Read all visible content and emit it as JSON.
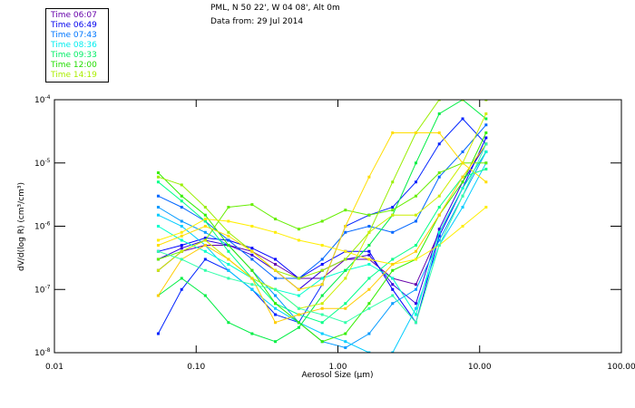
{
  "header": {
    "location": "PML, N 50 22', W 04 08', Alt 0m",
    "date": "Data from: 29 Jul 2014"
  },
  "legend": [
    {
      "label": "Time 06:07",
      "color": "#6600aa"
    },
    {
      "label": "Time 06:49",
      "color": "#0000ee"
    },
    {
      "label": "Time 07:43",
      "color": "#0077ff"
    },
    {
      "label": "Time 08:36",
      "color": "#00eeee"
    },
    {
      "label": "Time 09:33",
      "color": "#00ee66"
    },
    {
      "label": "Time 12:00",
      "color": "#22dd00"
    },
    {
      "label": "Time 14:19",
      "color": "#aaee00"
    }
  ],
  "chart_data": {
    "type": "line",
    "xscale": "log",
    "yscale": "log",
    "xlabel": "Aerosol Size (μm)",
    "ylabel": "dV/d(log R) (cm³/cm³)",
    "xlim": [
      0.01,
      100
    ],
    "ylim": [
      1e-08,
      0.0001
    ],
    "xticks": [
      "0.01",
      "0.10",
      "1.00",
      "10.00",
      "100.00"
    ],
    "xtick_values": [
      0.01,
      0.1,
      1,
      10,
      100
    ],
    "yticks": [
      {
        "base": "10",
        "exp": "-4",
        "value": 0.0001
      },
      {
        "base": "10",
        "exp": "-5",
        "value": 1e-05
      },
      {
        "base": "10",
        "exp": "-6",
        "value": 1e-06
      },
      {
        "base": "10",
        "exp": "-7",
        "value": 1e-07
      },
      {
        "base": "10",
        "exp": "-8",
        "value": 1e-08
      }
    ],
    "x": [
      0.054,
      0.079,
      0.116,
      0.169,
      0.248,
      0.362,
      0.53,
      0.775,
      1.13,
      1.66,
      2.43,
      3.55,
      5.19,
      7.59,
      11.1
    ],
    "series": [
      {
        "color": "#6600aa",
        "values": [
          2e-07,
          4e-07,
          5e-07,
          5e-07,
          4e-07,
          2.5e-07,
          1.5e-07,
          1.5e-07,
          3e-07,
          3e-07,
          1.5e-07,
          1.2e-07,
          8e-07,
          4e-06,
          1.5e-05
        ]
      },
      {
        "color": "#3300dd",
        "values": [
          3e-07,
          4.5e-07,
          6e-07,
          5e-07,
          3.5e-07,
          2e-07,
          1e-07,
          2e-07,
          3e-07,
          3.5e-07,
          1.2e-07,
          6e-08,
          9e-07,
          5e-06,
          2e-05
        ]
      },
      {
        "color": "#0000ff",
        "values": [
          4e-07,
          5e-07,
          6.5e-07,
          6e-07,
          4.5e-07,
          3e-07,
          1.5e-07,
          2.5e-07,
          4e-07,
          4e-07,
          1e-07,
          3e-08,
          7e-07,
          4e-06,
          2.5e-05
        ]
      },
      {
        "color": "#0022ff",
        "values": [
          2e-08,
          1e-07,
          3e-07,
          2e-07,
          1e-07,
          4e-08,
          3e-08,
          1.2e-07,
          1e-06,
          1.5e-06,
          2e-06,
          5e-06,
          2e-05,
          5e-05,
          2e-05
        ]
      },
      {
        "color": "#0066ff",
        "values": [
          3e-06,
          2e-06,
          1.2e-06,
          6e-07,
          3e-07,
          1.5e-07,
          1.5e-07,
          3e-07,
          8e-07,
          1e-06,
          8e-07,
          1.2e-06,
          6e-06,
          1.5e-05,
          4e-05
        ]
      },
      {
        "color": "#0099ff",
        "values": [
          2e-06,
          1.2e-06,
          8e-07,
          5e-07,
          2e-07,
          8e-08,
          3e-08,
          1.5e-08,
          1.2e-08,
          2e-08,
          6e-08,
          1e-07,
          6e-07,
          3e-06,
          1.5e-05
        ]
      },
      {
        "color": "#00ccff",
        "values": [
          1.5e-06,
          1e-06,
          5e-07,
          2e-07,
          1e-07,
          5e-08,
          3e-08,
          2e-08,
          1.5e-08,
          1e-08,
          1e-08,
          5e-08,
          5e-07,
          2e-06,
          1e-05
        ]
      },
      {
        "color": "#00ffcc",
        "values": [
          1e-06,
          6e-07,
          4e-07,
          2.5e-07,
          1.5e-07,
          1e-07,
          8e-08,
          1.5e-07,
          2e-07,
          2.5e-07,
          1.5e-07,
          4e-08,
          8e-07,
          4e-06,
          1.5e-05
        ]
      },
      {
        "color": "#00ff88",
        "values": [
          5e-06,
          2.5e-06,
          1.2e-06,
          4e-07,
          1.5e-07,
          6e-08,
          4e-08,
          3e-08,
          6e-08,
          1.5e-07,
          3e-07,
          5e-07,
          2e-06,
          6e-06,
          8e-06
        ]
      },
      {
        "color": "#00ee44",
        "values": [
          8e-08,
          1.5e-07,
          8e-08,
          3e-08,
          2e-08,
          1.5e-08,
          2.5e-08,
          8e-08,
          2e-07,
          5e-07,
          1.5e-06,
          1e-05,
          6e-05,
          0.0001,
          5e-05
        ]
      },
      {
        "color": "#33ee00",
        "values": [
          7e-06,
          3e-06,
          1.5e-06,
          5e-07,
          2e-07,
          6e-08,
          3e-08,
          1.5e-08,
          2e-08,
          6e-08,
          2e-07,
          3e-07,
          1.5e-06,
          5e-06,
          3e-05
        ]
      },
      {
        "color": "#66ee00",
        "values": [
          3e-07,
          4e-07,
          6e-07,
          2e-06,
          2.2e-06,
          1.3e-06,
          9e-07,
          1.2e-06,
          1.8e-06,
          1.5e-06,
          1.8e-06,
          3e-06,
          7e-06,
          1e-05,
          1e-05
        ]
      },
      {
        "color": "#99ee00",
        "values": [
          6e-06,
          4.5e-06,
          2e-06,
          8e-07,
          4e-07,
          2e-07,
          1.5e-07,
          2e-07,
          3e-07,
          8e-07,
          5e-06,
          3e-05,
          0.0001,
          0.0001,
          0.0001
        ]
      },
      {
        "color": "#ccee00",
        "values": [
          2e-07,
          4e-07,
          6e-07,
          3e-07,
          1.5e-07,
          1e-07,
          5e-08,
          6e-08,
          1.5e-07,
          8e-07,
          1.5e-06,
          1.5e-06,
          3e-06,
          1e-05,
          6e-05
        ]
      },
      {
        "color": "#ffee00",
        "values": [
          6e-07,
          8e-07,
          1.3e-06,
          1.2e-06,
          1e-06,
          8e-07,
          6e-07,
          5e-07,
          4e-07,
          3e-07,
          2.5e-07,
          3e-07,
          5e-07,
          1e-06,
          2e-06
        ]
      },
      {
        "color": "#ffdd00",
        "values": [
          5e-07,
          7e-07,
          1e-06,
          7e-07,
          4e-07,
          2e-07,
          1e-07,
          1.2e-07,
          1e-06,
          6e-06,
          3e-05,
          3e-05,
          3e-05,
          1e-05,
          5e-06
        ]
      },
      {
        "color": "#ffcc00",
        "values": [
          8e-08,
          3e-07,
          5e-07,
          3e-07,
          1.5e-07,
          3e-08,
          4e-08,
          5e-08,
          5e-08,
          1e-07,
          2.5e-07,
          4e-07,
          1.5e-06,
          6e-06,
          2e-05
        ]
      },
      {
        "color": "#33ffaa",
        "values": [
          4e-07,
          3e-07,
          2e-07,
          1.5e-07,
          1.2e-07,
          1e-07,
          5e-08,
          4e-08,
          3e-08,
          5e-08,
          8e-08,
          3e-08,
          5e-07,
          3e-06,
          2e-05
        ]
      }
    ]
  }
}
